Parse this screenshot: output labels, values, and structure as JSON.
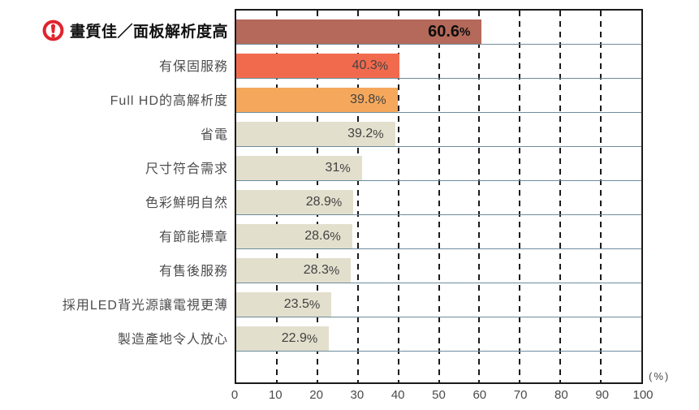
{
  "chart_data": {
    "type": "bar",
    "orientation": "horizontal",
    "title": "",
    "xlabel": "",
    "ylabel": "",
    "unit_label": "(%)",
    "xlim": [
      0,
      100
    ],
    "x_ticks": [
      0,
      10,
      20,
      30,
      40,
      50,
      60,
      70,
      80,
      90,
      100
    ],
    "grid": "vertical dashed lines every 10%",
    "legend_position": "none",
    "rows": [
      {
        "label": "畫質佳／面板解析度高",
        "value": 60.6,
        "value_text": "60.6",
        "unit": "%",
        "color": "#b4695a",
        "emphasis": true
      },
      {
        "label": "有保固服務",
        "value": 40.3,
        "value_text": "40.3",
        "unit": "%",
        "color": "#f26a4e",
        "emphasis": false
      },
      {
        "label": "Full HD的高解析度",
        "value": 39.8,
        "value_text": "39.8",
        "unit": "%",
        "color": "#f5a85c",
        "emphasis": false
      },
      {
        "label": "省電",
        "value": 39.2,
        "value_text": "39.2",
        "unit": "%",
        "color": "#e3dfcd",
        "emphasis": false
      },
      {
        "label": "尺寸符合需求",
        "value": 31,
        "value_text": "31",
        "unit": "%",
        "color": "#e3dfcd",
        "emphasis": false
      },
      {
        "label": "色彩鮮明自然",
        "value": 28.9,
        "value_text": "28.9",
        "unit": "%",
        "color": "#e3dfcd",
        "emphasis": false
      },
      {
        "label": "有節能標章",
        "value": 28.6,
        "value_text": "28.6",
        "unit": "%",
        "color": "#e3dfcd",
        "emphasis": false
      },
      {
        "label": "有售後服務",
        "value": 28.3,
        "value_text": "28.3",
        "unit": "%",
        "color": "#e3dfcd",
        "emphasis": false
      },
      {
        "label": "採用LED背光源讓電視更薄",
        "value": 23.5,
        "value_text": "23.5",
        "unit": "%",
        "color": "#e3dfcd",
        "emphasis": false
      },
      {
        "label": "製造產地令人放心",
        "value": 22.9,
        "value_text": "22.9",
        "unit": "%",
        "color": "#e3dfcd",
        "emphasis": false
      }
    ],
    "colors": {
      "emphasis_bar": "#b4695a",
      "second_bar": "#f26a4e",
      "third_bar": "#f5a85c",
      "default_bar": "#e3dfcd",
      "row_separator": "#6e8c9a",
      "plot_border": "#1a1a1a",
      "tick_text": "#4a4a4a",
      "alert_icon_red": "#e0232d"
    },
    "icons": [
      {
        "name": "alert-exclamation-icon",
        "color": "#e0232d",
        "attached_to": "畫質佳／面板解析度高"
      }
    ]
  }
}
